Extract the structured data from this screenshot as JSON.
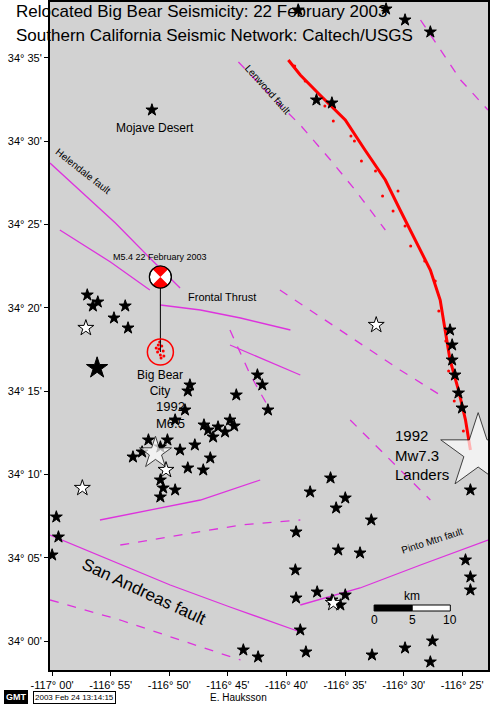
{
  "chart_data": {
    "type": "map",
    "title": "Relocated Big Bear Seismicity: 22 February 2003",
    "subtitle": "Southern California Seismic Network: Caltech/USGS",
    "xlim": [
      -117.003,
      -116.38
    ],
    "ylim": [
      33.971,
      34.639
    ],
    "xticks": [
      {
        "value": -117,
        "label": "-117° 00'"
      },
      {
        "value": -116.91667,
        "label": "-116° 55'"
      },
      {
        "value": -116.83333,
        "label": "-116° 50'"
      },
      {
        "value": -116.75,
        "label": "-116° 45'"
      },
      {
        "value": -116.66667,
        "label": "-116° 40'"
      },
      {
        "value": -116.58333,
        "label": "-116° 35'"
      },
      {
        "value": -116.5,
        "label": "-116° 30'"
      },
      {
        "value": -116.41667,
        "label": "-116° 25'"
      }
    ],
    "yticks": [
      {
        "value": 34,
        "label": "34° 00'"
      },
      {
        "value": 34.08333,
        "label": "34° 05'"
      },
      {
        "value": 34.16667,
        "label": "34° 10'"
      },
      {
        "value": 34.25,
        "label": "34° 15'"
      },
      {
        "value": 34.33333,
        "label": "34° 20'"
      },
      {
        "value": 34.41667,
        "label": "34° 25'"
      },
      {
        "value": 34.5,
        "label": "34° 30'"
      },
      {
        "value": 34.58333,
        "label": "34° 35'"
      }
    ],
    "grid": false,
    "faults": {
      "color": "#dd33dd",
      "lines": [
        {
          "line_style": "dash",
          "x": [
            -116.735,
            -116.69,
            -116.647,
            -116.604,
            -116.569,
            -116.526
          ],
          "y": [
            34.579,
            34.546,
            34.516,
            34.481,
            34.451,
            34.411
          ]
        },
        {
          "line_style": "solid",
          "x": [
            -117.003,
            -116.96,
            -116.91,
            -116.861,
            -116.818
          ],
          "y": [
            34.478,
            34.45,
            34.418,
            34.383,
            34.353
          ]
        },
        {
          "line_style": "solid",
          "x": [
            -116.846,
            -116.789,
            -116.732,
            -116.661
          ],
          "y": [
            34.336,
            34.331,
            34.323,
            34.311
          ]
        },
        {
          "line_style": "dash",
          "x": [
            -116.747,
            -116.718,
            -116.69
          ],
          "y": [
            34.311,
            34.266,
            34.231
          ]
        },
        {
          "line_style": "solid",
          "x": [
            -116.647,
            -116.562,
            -116.476,
            -116.38
          ],
          "y": [
            34.036,
            34.053,
            34.076,
            34.101
          ]
        },
        {
          "line_style": "solid",
          "x": [
            -117.003,
            -116.917,
            -116.832,
            -116.747,
            -116.647
          ],
          "y": [
            34.106,
            34.081,
            34.056,
            34.034,
            34.009
          ]
        },
        {
          "line_style": "dash",
          "x": [
            -117.003,
            -116.903,
            -116.818,
            -116.732
          ],
          "y": [
            34.041,
            34.021,
            34.001,
            33.981
          ]
        },
        {
          "line_style": "dash",
          "x": [
            -116.903,
            -116.818,
            -116.732,
            -116.647
          ],
          "y": [
            34.096,
            34.106,
            34.116,
            34.121
          ]
        },
        {
          "line_style": "dash",
          "x": [
            -116.476,
            -116.419,
            -116.38
          ],
          "y": [
            34.621,
            34.561,
            34.531
          ]
        },
        {
          "line_style": "dash",
          "x": [
            -116.676,
            -116.59,
            -116.505,
            -116.448
          ],
          "y": [
            34.351,
            34.311,
            34.271,
            34.246
          ]
        },
        {
          "line_style": "dash",
          "x": [
            -116.576,
            -116.519,
            -116.462
          ],
          "y": [
            34.221,
            34.181,
            34.141
          ]
        },
        {
          "line_style": "solid",
          "x": [
            -116.989,
            -116.917,
            -116.861
          ],
          "y": [
            34.411,
            34.379,
            34.351
          ]
        },
        {
          "line_style": "solid",
          "x": [
            -116.747,
            -116.647
          ],
          "y": [
            34.296,
            34.266
          ]
        },
        {
          "line_style": "solid",
          "x": [
            -116.932,
            -116.789,
            -116.704
          ],
          "y": [
            34.121,
            34.141,
            34.161
          ]
        }
      ]
    },
    "rupture": {
      "color": "#ff0000",
      "x": [
        -116.664,
        -116.647,
        -116.619,
        -116.583,
        -116.555,
        -116.526,
        -116.505,
        -116.483,
        -116.462,
        -116.448,
        -116.441,
        -116.434,
        -116.422,
        -116.412,
        -116.405
      ],
      "y": [
        34.581,
        34.566,
        34.546,
        34.521,
        34.491,
        34.461,
        34.431,
        34.401,
        34.371,
        34.341,
        34.311,
        34.281,
        34.251,
        34.221,
        34.191
      ]
    },
    "aftershocks": {
      "color": "#ff0000",
      "x": [
        -116.655,
        -116.64,
        -116.612,
        -116.6,
        -116.575,
        -116.56,
        -116.54,
        -116.53,
        -116.515,
        -116.498,
        -116.49,
        -116.47,
        -116.455,
        -116.45,
        -116.44,
        -116.436,
        -116.428,
        -116.415,
        -116.57,
        -116.508,
        -116.848,
        -116.844,
        -116.846,
        -116.85,
        -116.842,
        -116.845,
        -116.849,
        -116.841,
        -116.847,
        -116.852
      ],
      "y": [
        34.575,
        34.56,
        34.535,
        34.52,
        34.505,
        34.48,
        34.47,
        34.445,
        34.43,
        34.415,
        34.395,
        34.38,
        34.36,
        34.33,
        34.3,
        34.27,
        34.24,
        34.21,
        34.5,
        34.45,
        34.292,
        34.295,
        34.286,
        34.289,
        34.29,
        34.283,
        34.296,
        34.285,
        34.299,
        34.293
      ]
    },
    "events": [
      {
        "marker": "star",
        "color": "#000000",
        "x": [
          -116.858,
          -116.65,
          -116.525,
          -116.498,
          -116.462,
          -116.624,
          -116.602,
          -116.95,
          -116.935,
          -116.942,
          -116.896,
          -116.912,
          -116.892,
          -116.434,
          -116.431,
          -116.431,
          -116.427,
          -116.422,
          -116.417,
          -116.708,
          -116.738,
          -116.701,
          -116.693,
          -116.804,
          -116.807,
          -116.811,
          -116.784,
          -116.825,
          -116.836,
          -116.863,
          -116.846,
          -116.818,
          -116.797,
          -116.771,
          -116.778,
          -116.764,
          -116.754,
          -116.747,
          -116.741,
          -116.785,
          -116.775,
          -116.807,
          -116.872,
          -116.885,
          -116.846,
          -116.842,
          -116.846,
          -116.825,
          -116.633,
          -116.604,
          -116.596,
          -116.583,
          -116.653,
          -116.994,
          -116.991,
          -117.0,
          -116.654,
          -116.593,
          -116.562,
          -116.546,
          -116.653,
          -116.623,
          -116.602,
          -116.59,
          -116.583,
          -116.405,
          -116.412,
          -116.405,
          -116.405,
          -116.728,
          -116.707,
          -116.647,
          -116.639,
          -116.459,
          -116.462,
          -116.498,
          -116.545
        ],
        "y": [
          34.531,
          34.631,
          34.632,
          34.621,
          34.609,
          34.541,
          34.538,
          34.346,
          34.339,
          34.335,
          34.335,
          34.323,
          34.313,
          34.311,
          34.296,
          34.281,
          34.266,
          34.248,
          34.233,
          34.266,
          34.246,
          34.256,
          34.231,
          34.256,
          34.25,
          34.231,
          34.216,
          34.221,
          34.201,
          34.201,
          34.194,
          34.191,
          34.196,
          34.204,
          34.211,
          34.214,
          34.209,
          34.221,
          34.215,
          34.171,
          34.183,
          34.173,
          34.189,
          34.184,
          34.161,
          34.153,
          34.144,
          34.151,
          34.149,
          34.163,
          34.133,
          34.143,
          34.109,
          34.124,
          34.104,
          34.086,
          34.071,
          34.091,
          34.088,
          34.121,
          34.043,
          34.049,
          34.041,
          34.036,
          34.046,
          34.151,
          34.081,
          34.064,
          34.051,
          33.991,
          33.984,
          34.011,
          33.989,
          34.0,
          33.979,
          33.993,
          33.986
        ]
      },
      {
        "marker": "star",
        "color": "#000000",
        "x": [
          -116.936
        ],
        "y": [
          34.273
        ]
      },
      {
        "marker": "star",
        "color": "#ffffff",
        "x": [
          -116.539,
          -116.952,
          -116.957,
          -116.6,
          -116.838
        ],
        "y": [
          34.316,
          34.313,
          34.153,
          34.038,
          34.171
        ]
      },
      {
        "marker": "star",
        "color": "#ffffff",
        "x": [
          -116.853,
          -116.394
        ],
        "y": [
          34.188,
          34.189
        ],
        "magnitude": [
          6.5,
          7.3
        ]
      }
    ],
    "mainshock": {
      "marker": "circle-open",
      "color": "#ff0000",
      "x": -116.846,
      "y": 34.289
    },
    "focal_mechanism": {
      "color": "#ff0000",
      "x": -116.846,
      "y": 34.364,
      "label": "M5.4 22 February 2003"
    },
    "labels": [
      {
        "lines": [
          "Mojave Desert"
        ],
        "x": -116.853,
        "y": 34.513
      },
      {
        "lines": [
          "Lenwood fault"
        ],
        "x": -116.693,
        "y": 34.552
      },
      {
        "lines": [
          "Helendale fault"
        ],
        "x": -116.955,
        "y": 34.47
      },
      {
        "lines": [
          "Frontal Thrust"
        ],
        "x": -116.758,
        "y": 34.344
      },
      {
        "lines": [
          "Big Bear",
          "City"
        ],
        "x": -116.846,
        "y": 34.258
      },
      {
        "lines": [
          "1992",
          "M6.5"
        ],
        "x": -116.832,
        "y": 34.226
      },
      {
        "lines": [
          "1992",
          "Mw7.3",
          "Landers"
        ],
        "x": -116.515,
        "y": 34.186
      },
      {
        "lines": [
          "Pinto Mtn fault"
        ],
        "x": -116.459,
        "y": 34.101
      },
      {
        "lines": [
          "San Andreas fault"
        ],
        "x": -116.87,
        "y": 34.05
      }
    ],
    "scale_bar": {
      "title": "km",
      "x": -116.542,
      "y": 34.033,
      "ticks": [
        0,
        5,
        10
      ]
    },
    "credits": {
      "software": "GMT",
      "timestamp": "2003 Feb 24 13:14:15",
      "author": "E. Hauksson"
    }
  }
}
